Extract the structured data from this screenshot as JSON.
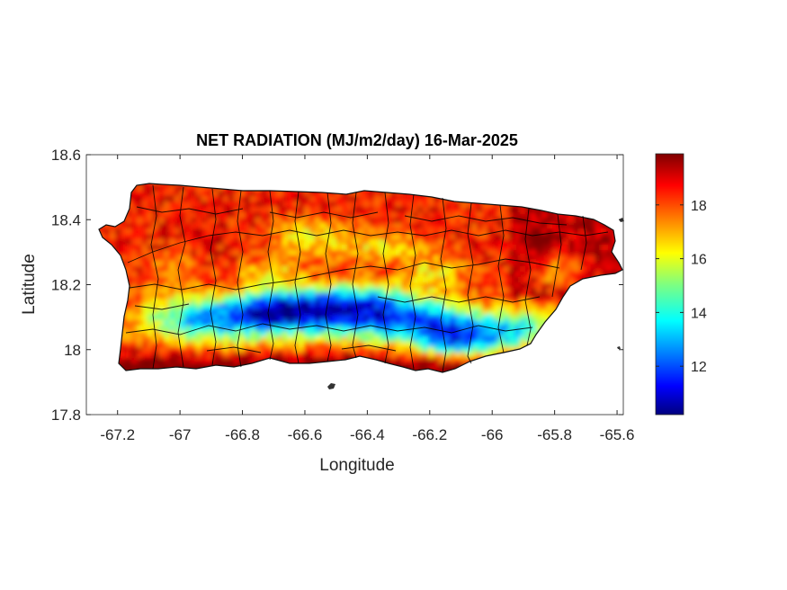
{
  "chart_data": {
    "type": "heatmap",
    "title": "NET RADIATION (MJ/m2/day) 16-Mar-2025",
    "xlabel": "Longitude",
    "ylabel": "Latitude",
    "xlim": [
      -67.3,
      -65.58
    ],
    "ylim": [
      17.8,
      18.6
    ],
    "x_ticks": [
      "-67.2",
      "-67",
      "-66.8",
      "-66.6",
      "-66.4",
      "-66.2",
      "-66",
      "-65.8",
      "-65.6"
    ],
    "y_ticks": [
      "17.8",
      "18",
      "18.2",
      "18.4",
      "18.6"
    ],
    "x_tick_values": [
      -67.2,
      -67,
      -66.8,
      -66.6,
      -66.4,
      -66.2,
      -66,
      -65.8,
      -65.6
    ],
    "y_tick_values": [
      17.8,
      18.0,
      18.2,
      18.4,
      18.6
    ],
    "colorbar": {
      "colormap": "jet",
      "range": [
        10.2,
        19.9
      ],
      "ticks": [
        "12",
        "14",
        "16",
        "18"
      ],
      "tick_values": [
        12,
        14,
        16,
        18
      ]
    },
    "region": "Puerto Rico",
    "pattern": "high values (~18-19.5) along north and east coasts, low values (~11-14) across the south-central mountains"
  }
}
